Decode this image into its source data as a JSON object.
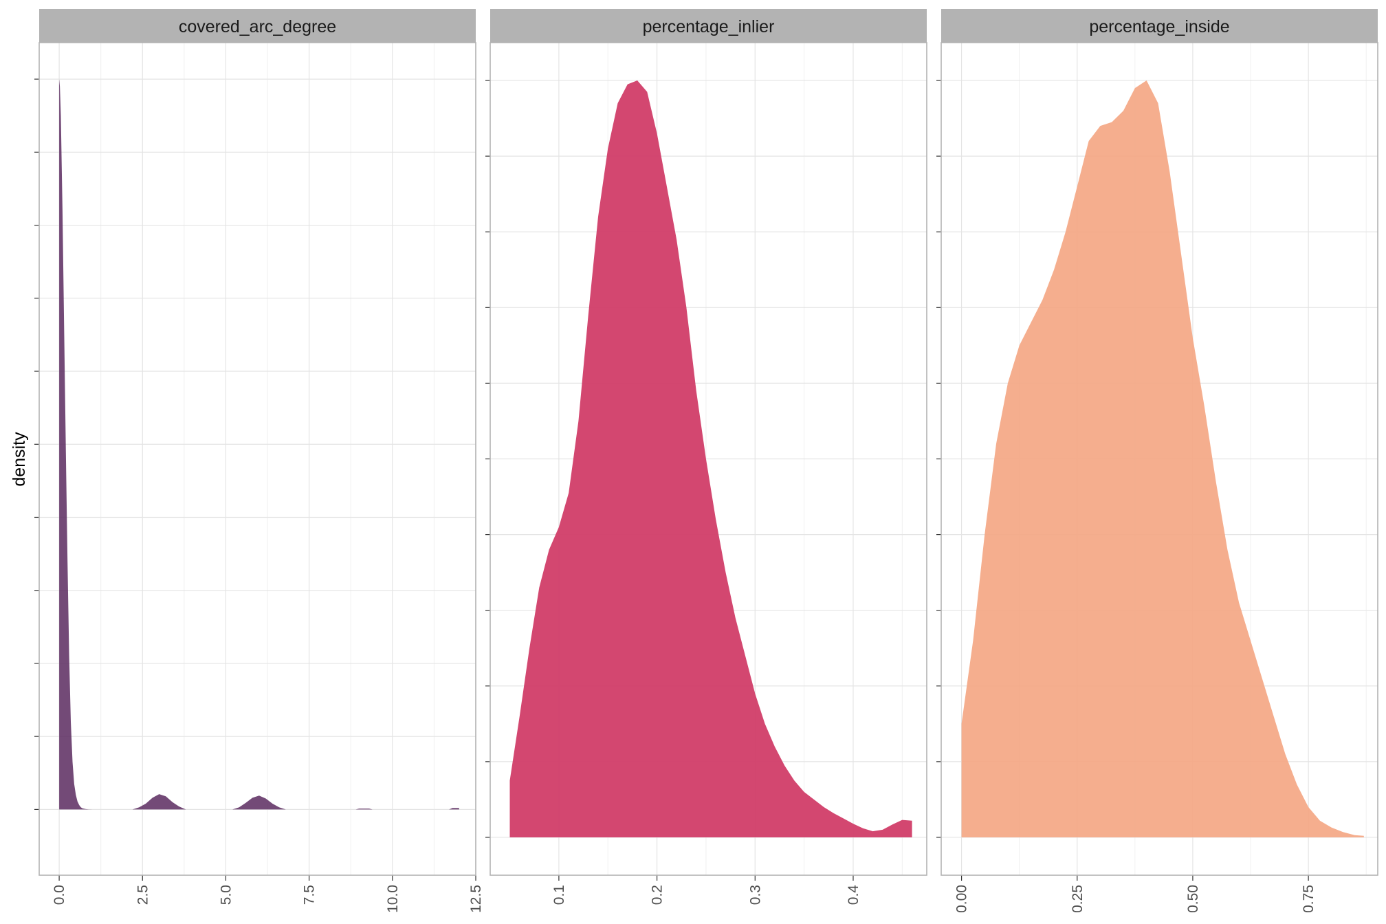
{
  "chart_data": {
    "type": "area",
    "ylabel": "density",
    "grid": true,
    "panels": [
      {
        "title": "covered_arc_degree",
        "color": "#5b2a5f",
        "opacity": 0.85,
        "xlim": [
          -0.6,
          12.5
        ],
        "ylim": [
          -0.09,
          1.05
        ],
        "xticks": [
          0,
          2.5,
          5,
          7.5,
          10,
          12.5
        ],
        "xtick_labels": [
          "0.0",
          "2.5",
          "5.0",
          "7.5",
          "10.0",
          "12.5"
        ],
        "x": [
          0,
          0.02,
          0.05,
          0.1,
          0.15,
          0.2,
          0.25,
          0.3,
          0.35,
          0.4,
          0.45,
          0.5,
          0.55,
          0.6,
          0.65,
          0.7,
          0.8,
          0.9,
          1.0,
          2.2,
          2.4,
          2.6,
          2.8,
          3.0,
          3.2,
          3.4,
          3.6,
          3.8,
          5.2,
          5.4,
          5.6,
          5.8,
          6.0,
          6.2,
          6.4,
          6.6,
          6.8,
          8.9,
          9.0,
          9.3,
          9.4,
          11.7,
          11.8,
          12.0
        ],
        "y": [
          1.0,
          0.99,
          0.95,
          0.82,
          0.65,
          0.49,
          0.34,
          0.21,
          0.12,
          0.065,
          0.035,
          0.02,
          0.011,
          0.006,
          0.003,
          0.0015,
          0.0005,
          0.0001,
          0,
          0,
          0.003,
          0.008,
          0.016,
          0.021,
          0.018,
          0.01,
          0.004,
          0,
          0,
          0.003,
          0.009,
          0.016,
          0.019,
          0.015,
          0.008,
          0.003,
          0,
          0,
          0.0012,
          0.0012,
          0,
          0,
          0.002,
          0.002
        ]
      },
      {
        "title": "percentage_inlier",
        "color": "#d13d68",
        "opacity": 0.95,
        "xlim": [
          0.03,
          0.475
        ],
        "ylim": [
          -0.05,
          1.05
        ],
        "xticks": [
          0.1,
          0.2,
          0.3,
          0.4
        ],
        "xtick_labels": [
          "0.1",
          "0.2",
          "0.3",
          "0.4"
        ],
        "x": [
          0.05,
          0.06,
          0.07,
          0.08,
          0.09,
          0.1,
          0.11,
          0.12,
          0.13,
          0.14,
          0.15,
          0.16,
          0.17,
          0.18,
          0.19,
          0.2,
          0.21,
          0.22,
          0.23,
          0.24,
          0.25,
          0.26,
          0.27,
          0.28,
          0.29,
          0.3,
          0.31,
          0.32,
          0.33,
          0.34,
          0.35,
          0.36,
          0.37,
          0.38,
          0.39,
          0.4,
          0.41,
          0.42,
          0.43,
          0.44,
          0.45,
          0.46
        ],
        "y": [
          0.075,
          0.16,
          0.25,
          0.33,
          0.38,
          0.41,
          0.455,
          0.55,
          0.69,
          0.82,
          0.91,
          0.97,
          0.995,
          1.0,
          0.985,
          0.93,
          0.86,
          0.79,
          0.7,
          0.59,
          0.5,
          0.42,
          0.35,
          0.29,
          0.24,
          0.19,
          0.15,
          0.12,
          0.095,
          0.075,
          0.06,
          0.05,
          0.04,
          0.032,
          0.025,
          0.018,
          0.012,
          0.008,
          0.01,
          0.017,
          0.023,
          0.022
        ]
      },
      {
        "title": "percentage_inside",
        "color": "#f4a582",
        "opacity": 0.9,
        "xlim": [
          -0.044,
          0.9
        ],
        "ylim": [
          -0.05,
          1.05
        ],
        "xticks": [
          0,
          0.25,
          0.5,
          0.75
        ],
        "xtick_labels": [
          "0.00",
          "0.25",
          "0.50",
          "0.75"
        ],
        "x": [
          0.0,
          0.025,
          0.05,
          0.075,
          0.1,
          0.125,
          0.15,
          0.175,
          0.2,
          0.225,
          0.25,
          0.275,
          0.3,
          0.325,
          0.35,
          0.375,
          0.4,
          0.425,
          0.45,
          0.475,
          0.5,
          0.525,
          0.55,
          0.575,
          0.6,
          0.625,
          0.65,
          0.675,
          0.7,
          0.725,
          0.75,
          0.775,
          0.8,
          0.825,
          0.85,
          0.87
        ],
        "y": [
          0.15,
          0.26,
          0.4,
          0.52,
          0.6,
          0.65,
          0.68,
          0.71,
          0.75,
          0.8,
          0.86,
          0.92,
          0.94,
          0.945,
          0.96,
          0.99,
          1.0,
          0.97,
          0.88,
          0.77,
          0.66,
          0.57,
          0.47,
          0.38,
          0.31,
          0.26,
          0.21,
          0.16,
          0.11,
          0.07,
          0.04,
          0.022,
          0.013,
          0.007,
          0.003,
          0.002
        ]
      }
    ]
  }
}
